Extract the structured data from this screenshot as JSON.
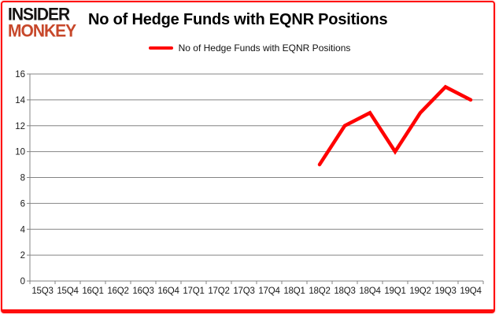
{
  "brand": {
    "line1": "INSIDER",
    "line2": "MONKEY",
    "accent_color": "#c7482b"
  },
  "header": {
    "title": "No of Hedge Funds with EQNR Positions"
  },
  "legend": {
    "label": "No of Hedge Funds with EQNR Positions",
    "line_color": "#ff0000"
  },
  "frame_color": "#ff0c0c",
  "chart_data": {
    "type": "line",
    "title": "No of Hedge Funds with EQNR Positions",
    "categories": [
      "15Q3",
      "15Q4",
      "16Q1",
      "16Q2",
      "16Q3",
      "16Q4",
      "17Q1",
      "17Q2",
      "17Q3",
      "17Q4",
      "18Q1",
      "18Q2",
      "18Q3",
      "18Q4",
      "19Q1",
      "19Q2",
      "19Q3",
      "19Q4"
    ],
    "series": [
      {
        "name": "No of Hedge Funds with EQNR Positions",
        "color": "#ff0000",
        "values": [
          null,
          null,
          null,
          null,
          null,
          null,
          null,
          null,
          null,
          null,
          null,
          9,
          12,
          13,
          10,
          13,
          15,
          14
        ]
      }
    ],
    "ylim": [
      0,
      16
    ],
    "ytick_step": 2,
    "yticks": [
      0,
      2,
      4,
      6,
      8,
      10,
      12,
      14,
      16
    ],
    "grid": true,
    "legend_position": "top-center",
    "gridline_color": "#848484",
    "axis_color": "#848484",
    "tick_label_color": "#1a1a1a"
  }
}
